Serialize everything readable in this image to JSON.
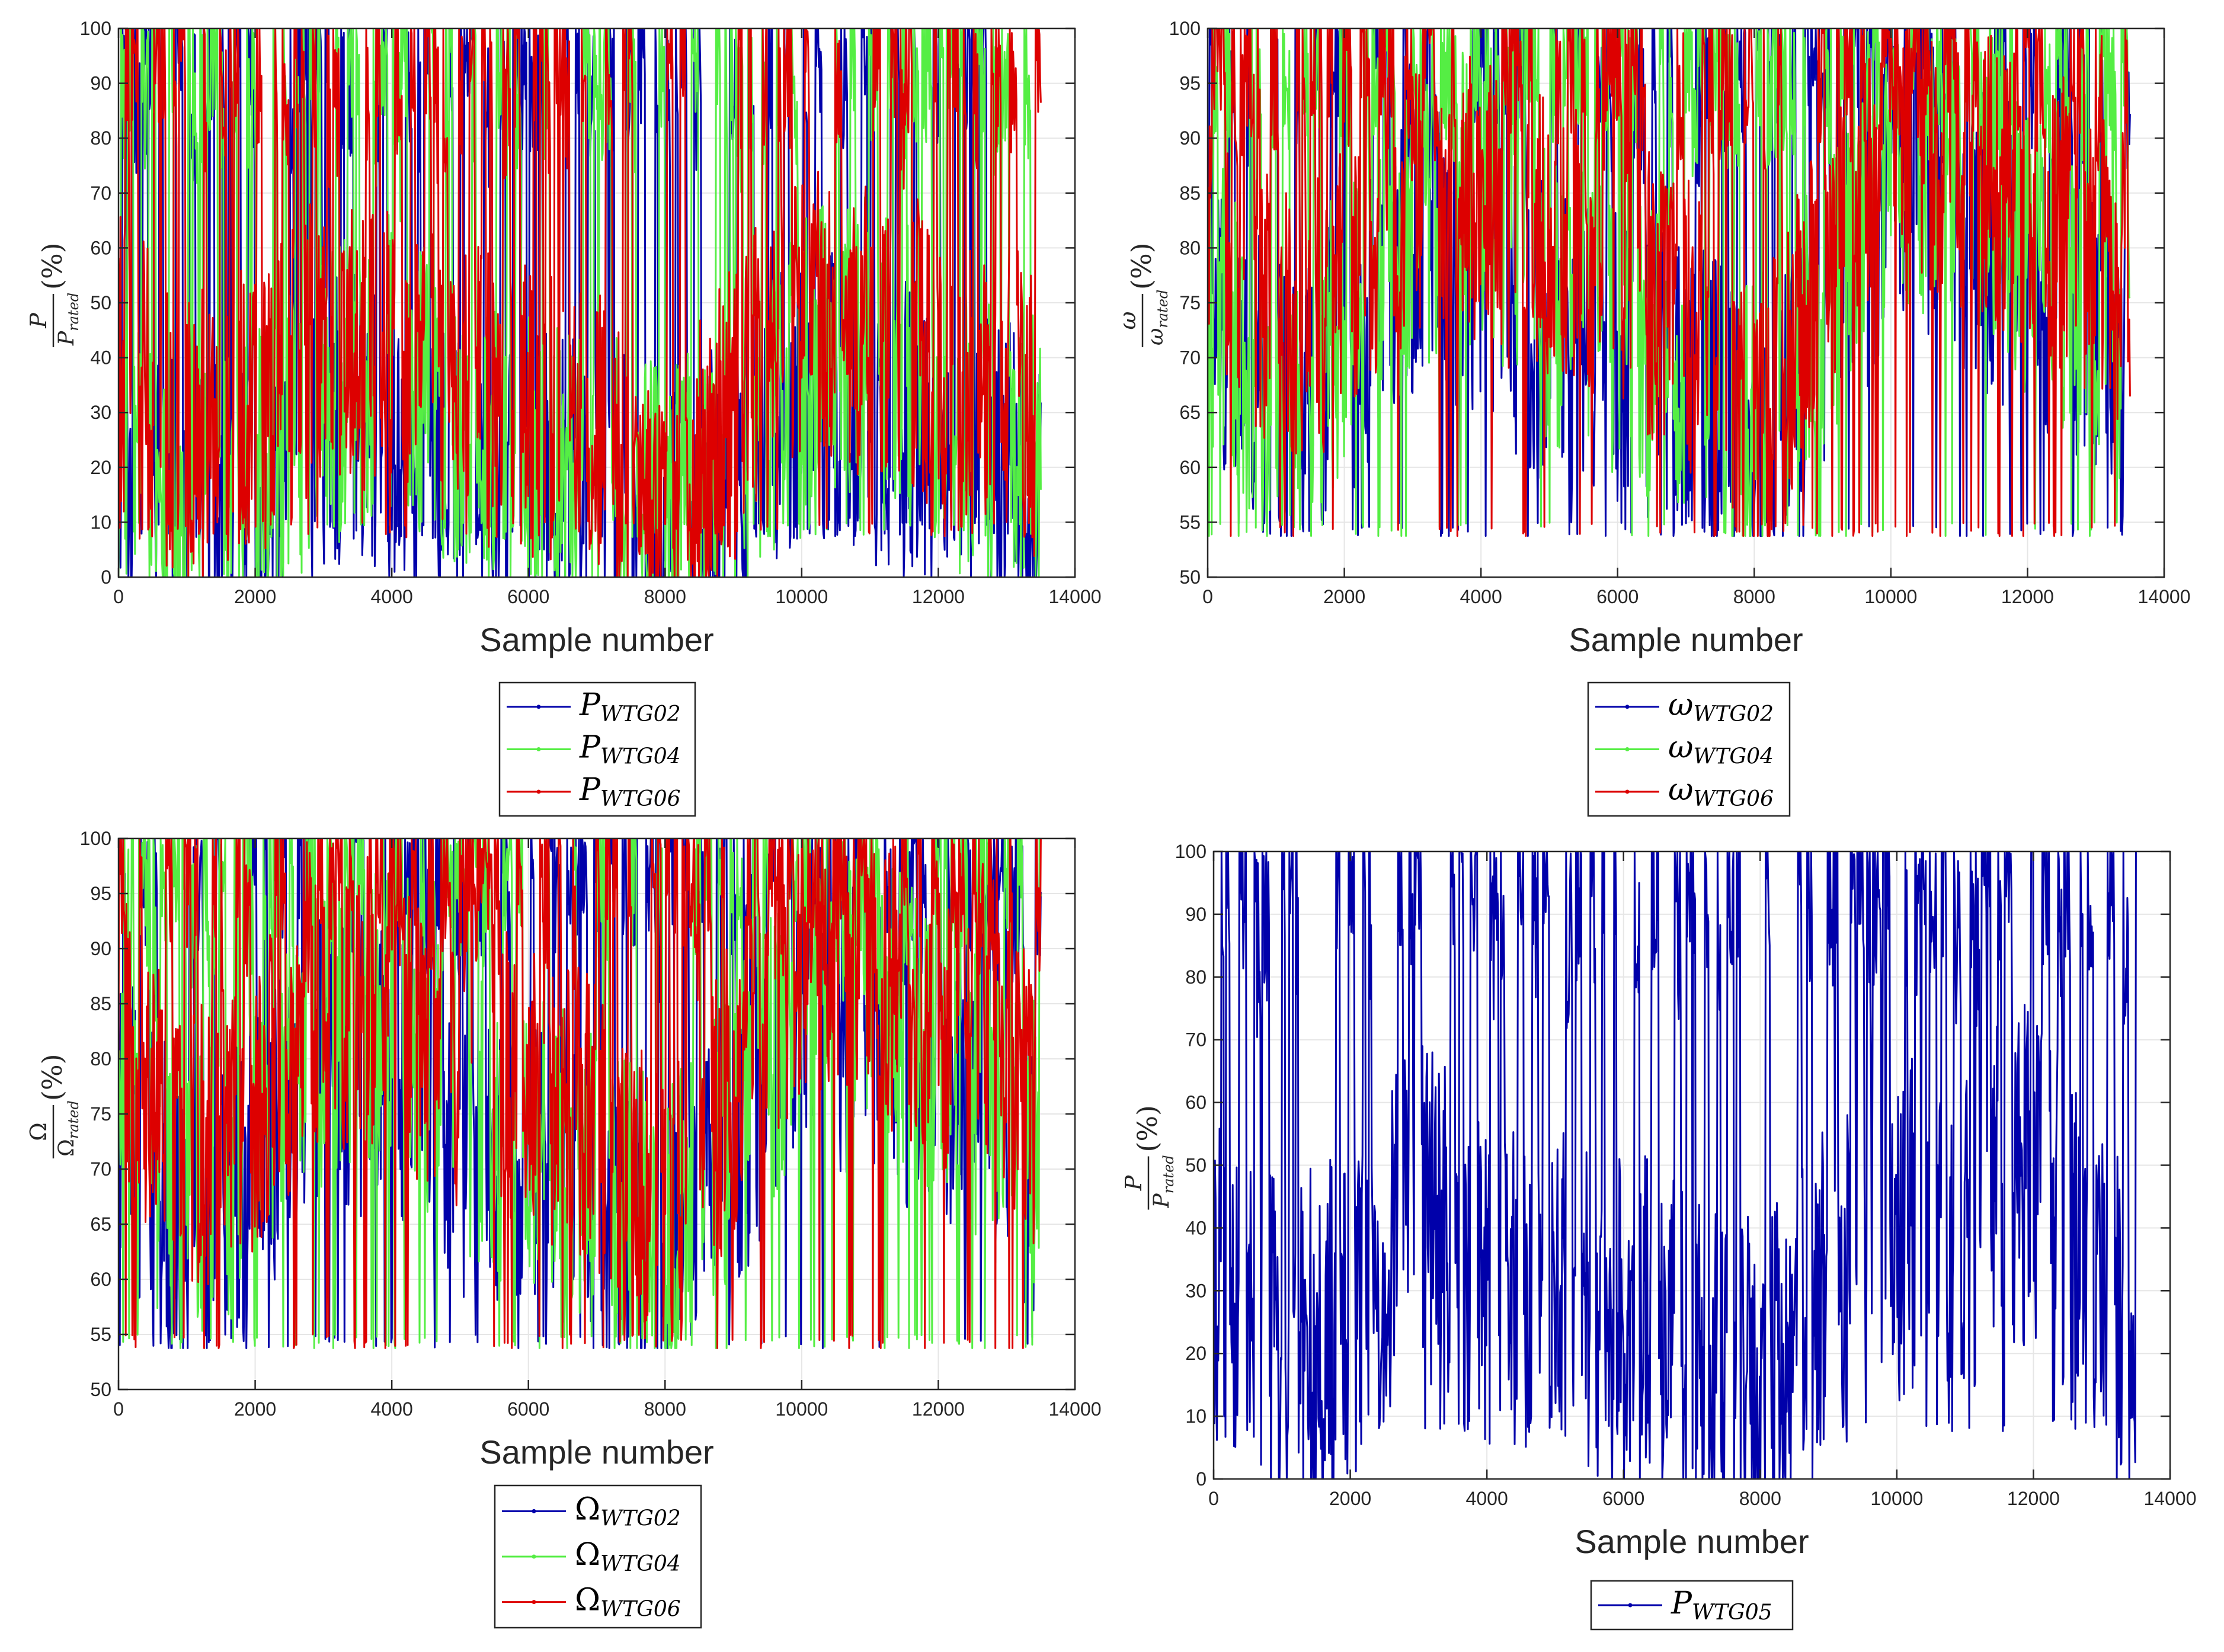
{
  "colors": {
    "blue": "#0000aa",
    "green": "#55ee44",
    "red": "#dd0000",
    "grid": "#e6e6e6",
    "axis": "#262626"
  },
  "chart_data": [
    {
      "id": "tl",
      "type": "line",
      "xlabel": "Sample number",
      "ylabel": {
        "num": "P",
        "den": "P",
        "den_sub": "rated",
        "suffix": "(%)"
      },
      "xlim": [
        0,
        14000
      ],
      "ylim": [
        0,
        100
      ],
      "xticks": [
        0,
        2000,
        4000,
        6000,
        8000,
        10000,
        12000,
        14000
      ],
      "yticks": [
        0,
        10,
        20,
        30,
        40,
        50,
        60,
        70,
        80,
        90,
        100
      ],
      "grid": true,
      "legend_position": "below",
      "series": [
        {
          "symbol": "P",
          "subscript": "WTG02",
          "color": "#0000aa",
          "x": [
            0,
            1000,
            2000,
            3000,
            4000,
            5000,
            6000,
            7000,
            8000,
            9000,
            10000,
            11000,
            12000,
            13000,
            13500
          ],
          "values": [
            20,
            10,
            15,
            30,
            25,
            20,
            18,
            15,
            10,
            20,
            35,
            30,
            25,
            20,
            15
          ]
        },
        {
          "symbol": "P",
          "subscript": "WTG04",
          "color": "#55ee44",
          "x": [
            0,
            1000,
            2000,
            3000,
            4000,
            5000,
            6000,
            7000,
            8000,
            9000,
            10000,
            11000,
            12000,
            13000,
            13500
          ],
          "values": [
            22,
            12,
            18,
            32,
            40,
            25,
            20,
            18,
            12,
            22,
            38,
            45,
            30,
            22,
            20
          ]
        },
        {
          "symbol": "P",
          "subscript": "WTG06",
          "color": "#dd0000",
          "x": [
            0,
            1000,
            2000,
            3000,
            4000,
            5000,
            6000,
            7000,
            8000,
            9000,
            10000,
            11000,
            12000,
            13000,
            13500
          ],
          "values": [
            40,
            25,
            30,
            45,
            40,
            35,
            30,
            25,
            10,
            30,
            50,
            45,
            40,
            35,
            30
          ]
        }
      ]
    },
    {
      "id": "tr",
      "type": "line",
      "xlabel": "Sample number",
      "ylabel": {
        "num": "ω",
        "den": "ω",
        "den_sub": "rated",
        "suffix": "(%)"
      },
      "xlim": [
        0,
        14000
      ],
      "ylim": [
        50,
        100
      ],
      "xticks": [
        0,
        2000,
        4000,
        6000,
        8000,
        10000,
        12000,
        14000
      ],
      "yticks": [
        50,
        55,
        60,
        65,
        70,
        75,
        80,
        85,
        90,
        95,
        100
      ],
      "grid": true,
      "legend_position": "below",
      "series": [
        {
          "symbol": "ω",
          "subscript": "WTG02",
          "color": "#0000aa",
          "x": [
            0,
            1000,
            2000,
            3000,
            4000,
            5000,
            6000,
            7000,
            8000,
            9000,
            10000,
            11000,
            12000,
            13000,
            13500
          ],
          "values": [
            75,
            65,
            70,
            80,
            78,
            72,
            70,
            68,
            62,
            72,
            85,
            82,
            78,
            72,
            68
          ]
        },
        {
          "symbol": "ω",
          "subscript": "WTG04",
          "color": "#55ee44",
          "x": [
            0,
            1000,
            2000,
            3000,
            4000,
            5000,
            6000,
            7000,
            8000,
            9000,
            10000,
            11000,
            12000,
            13000,
            13500
          ],
          "values": [
            76,
            66,
            72,
            82,
            85,
            75,
            72,
            70,
            63,
            74,
            86,
            88,
            80,
            74,
            72
          ]
        },
        {
          "symbol": "ω",
          "subscript": "WTG06",
          "color": "#dd0000",
          "x": [
            0,
            1000,
            2000,
            3000,
            4000,
            5000,
            6000,
            7000,
            8000,
            9000,
            10000,
            11000,
            12000,
            13000,
            13500
          ],
          "values": [
            82,
            72,
            76,
            86,
            84,
            80,
            78,
            74,
            62,
            78,
            90,
            88,
            84,
            80,
            76
          ]
        }
      ]
    },
    {
      "id": "bl",
      "type": "line",
      "xlabel": "Sample number",
      "ylabel": {
        "num": "Ω",
        "den": "Ω",
        "den_sub": "rated",
        "suffix": "(%)"
      },
      "xlim": [
        0,
        14000
      ],
      "ylim": [
        50,
        100
      ],
      "xticks": [
        0,
        2000,
        4000,
        6000,
        8000,
        10000,
        12000,
        14000
      ],
      "yticks": [
        50,
        55,
        60,
        65,
        70,
        75,
        80,
        85,
        90,
        95,
        100
      ],
      "grid": true,
      "legend_position": "below",
      "series": [
        {
          "symbol": "Ω",
          "subscript": "WTG02",
          "color": "#0000aa",
          "x": [
            0,
            1000,
            2000,
            3000,
            4000,
            5000,
            6000,
            7000,
            8000,
            9000,
            10000,
            11000,
            12000,
            13000,
            13500
          ],
          "values": [
            75,
            65,
            70,
            80,
            78,
            72,
            70,
            68,
            62,
            72,
            85,
            82,
            78,
            72,
            68
          ]
        },
        {
          "symbol": "Ω",
          "subscript": "WTG04",
          "color": "#55ee44",
          "x": [
            0,
            1000,
            2000,
            3000,
            4000,
            5000,
            6000,
            7000,
            8000,
            9000,
            10000,
            11000,
            12000,
            13000,
            13500
          ],
          "values": [
            76,
            66,
            72,
            82,
            85,
            75,
            72,
            70,
            63,
            74,
            86,
            88,
            80,
            74,
            72
          ]
        },
        {
          "symbol": "Ω",
          "subscript": "WTG06",
          "color": "#dd0000",
          "x": [
            0,
            1000,
            2000,
            3000,
            4000,
            5000,
            6000,
            7000,
            8000,
            9000,
            10000,
            11000,
            12000,
            13000,
            13500
          ],
          "values": [
            82,
            72,
            76,
            86,
            84,
            80,
            78,
            74,
            64,
            78,
            90,
            88,
            84,
            80,
            76
          ]
        }
      ]
    },
    {
      "id": "br",
      "type": "line",
      "xlabel": "Sample number",
      "ylabel": {
        "num": "P",
        "den": "P",
        "den_sub": "rated",
        "suffix": "(%)"
      },
      "xlim": [
        0,
        14000
      ],
      "ylim": [
        0,
        100
      ],
      "xticks": [
        0,
        2000,
        4000,
        6000,
        8000,
        10000,
        12000,
        14000
      ],
      "yticks": [
        0,
        10,
        20,
        30,
        40,
        50,
        60,
        70,
        80,
        90,
        100
      ],
      "grid": true,
      "legend_position": "below",
      "series": [
        {
          "symbol": "P",
          "subscript": "WTG05",
          "color": "#0000aa",
          "x": [
            0,
            1000,
            2000,
            3000,
            4000,
            5000,
            6000,
            7000,
            8000,
            9000,
            10000,
            11000,
            12000,
            13000,
            13500
          ],
          "values": [
            30,
            20,
            25,
            45,
            30,
            28,
            25,
            22,
            15,
            30,
            40,
            40,
            50,
            30,
            20
          ]
        }
      ]
    }
  ]
}
